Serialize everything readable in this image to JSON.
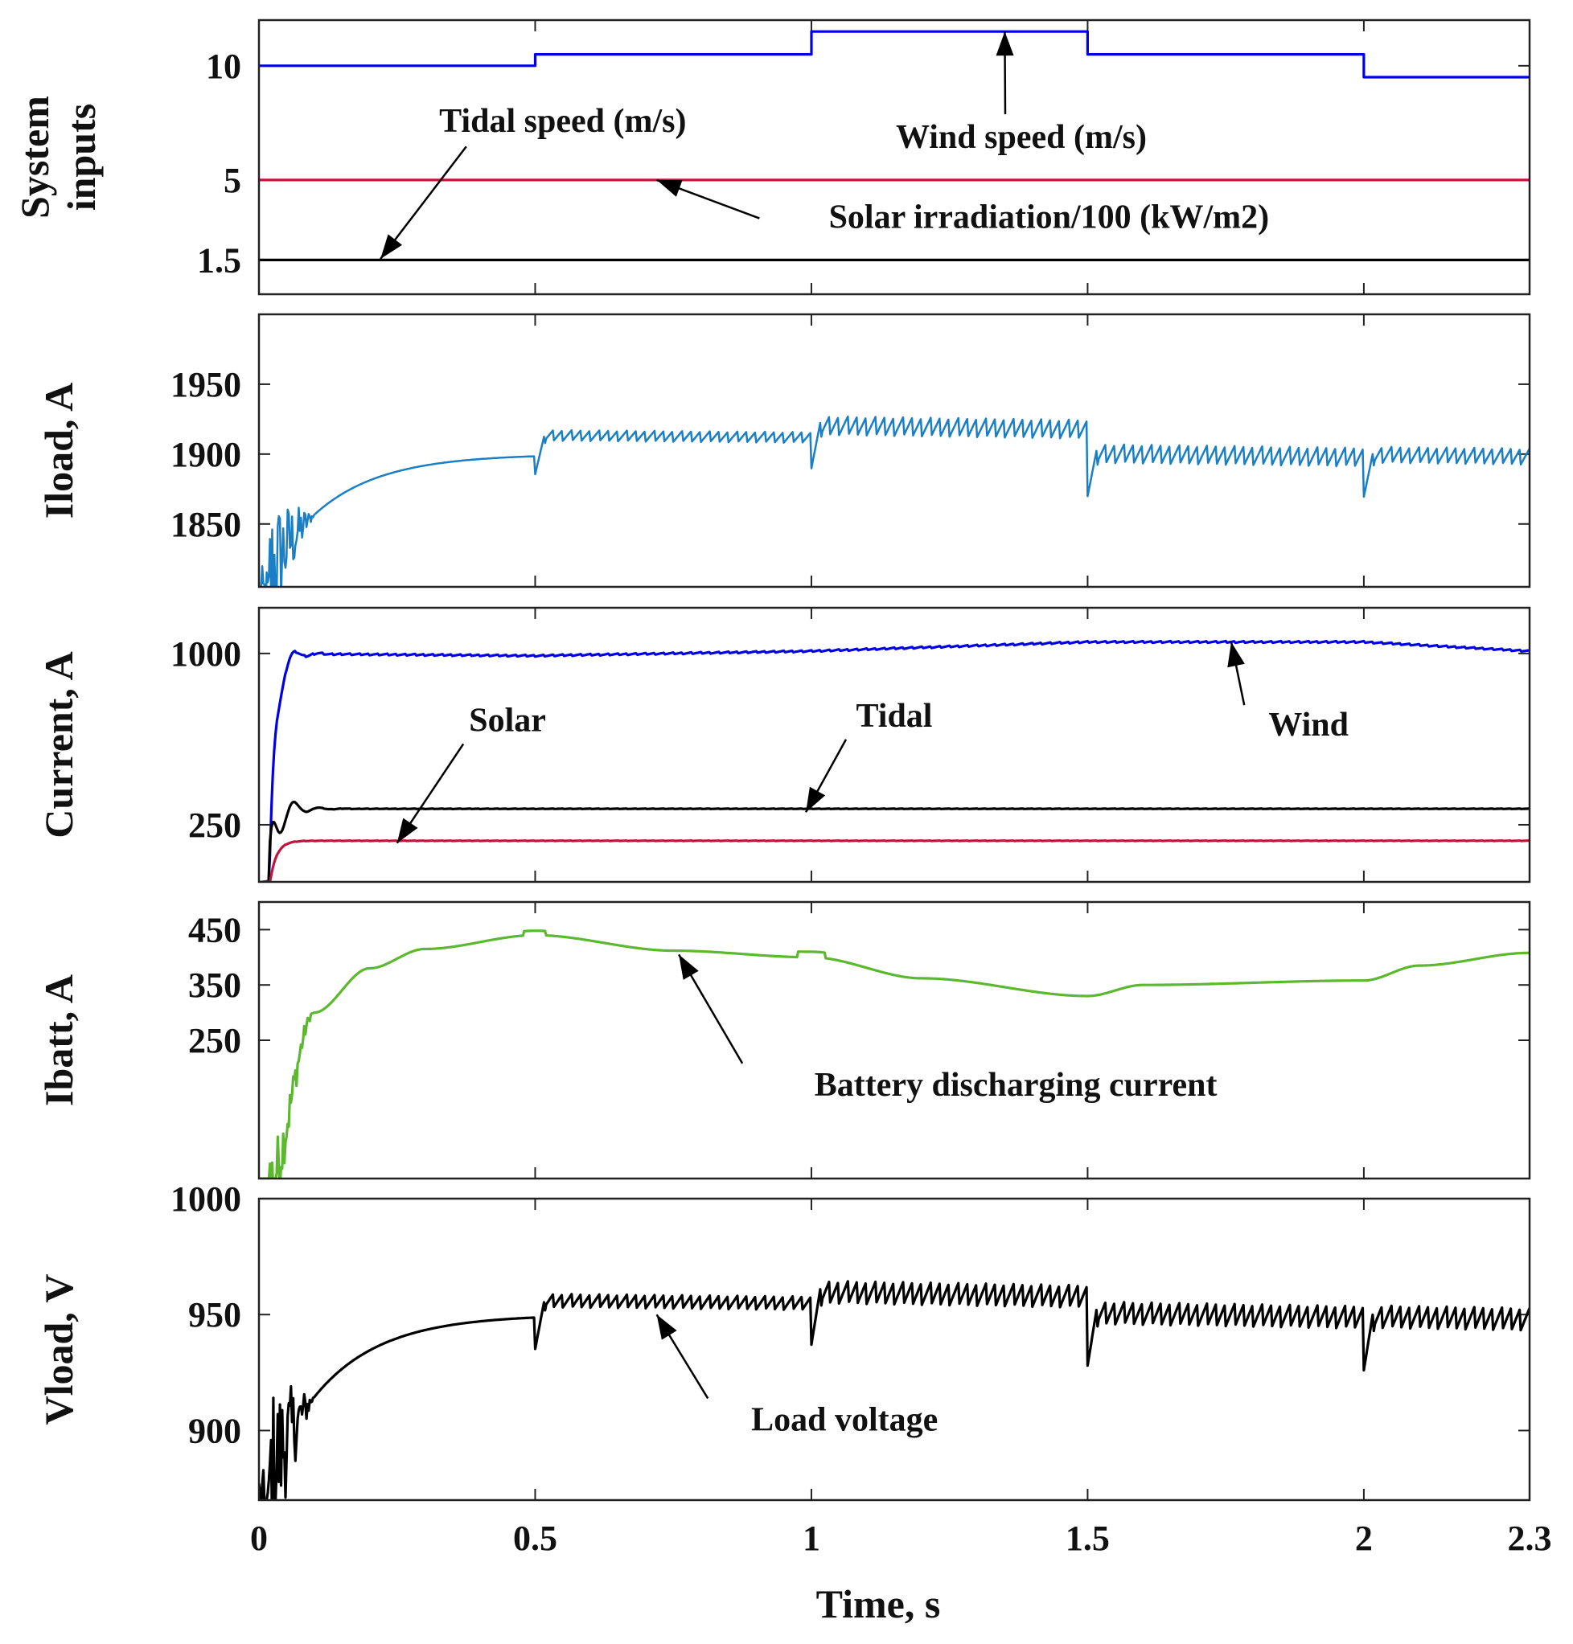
{
  "chart_data": {
    "type": "line",
    "xlabel": "Time, s",
    "xlim": [
      0,
      2.3
    ],
    "xticks": [
      0,
      0.5,
      1,
      1.5,
      2,
      2.3
    ],
    "xtick_labels": [
      "0",
      "0.5",
      "1",
      "1.5",
      "2",
      "2.3"
    ],
    "panels": [
      {
        "id": "inputs",
        "ylabel": [
          "System",
          "inputs"
        ],
        "ylim": [
          0,
          12
        ],
        "yticks": [
          1.5,
          5,
          10
        ],
        "ytick_labels": [
          "1.5",
          "5",
          "10"
        ],
        "series": [
          {
            "name": "Wind speed (m/s)",
            "color": "#0000e6",
            "steps": [
              [
                0,
                10
              ],
              [
                0.5,
                10.5
              ],
              [
                1,
                11.5
              ],
              [
                1.5,
                10.5
              ],
              [
                2,
                9.5
              ],
              [
                2.3,
                9.5
              ]
            ]
          },
          {
            "name": "Solar irradiation/100 (kW/m2)",
            "color": "#c0143c",
            "steps": [
              [
                0,
                5
              ],
              [
                2.3,
                5
              ]
            ]
          },
          {
            "name": "Tidal speed (m/s)",
            "color": "#000000",
            "steps": [
              [
                0,
                1.5
              ],
              [
                2.3,
                1.5
              ]
            ]
          }
        ],
        "annotations": [
          {
            "text": "Tidal speed (m/s)",
            "x": 0.55,
            "y": 7.1,
            "arrow_to": [
              0.22,
              1.55
            ]
          },
          {
            "text": "Wind speed (m/s)",
            "x": 1.38,
            "y": 6.4,
            "arrow_to": [
              1.35,
              11.5
            ]
          },
          {
            "text": "Solar irradiation/100 (kW/m2)",
            "x": 1.43,
            "y": 2.9,
            "arrow_to": [
              0.72,
              5.0
            ]
          }
        ]
      },
      {
        "id": "iload",
        "ylabel": [
          "Iload, A"
        ],
        "ylim": [
          1805,
          2000
        ],
        "yticks": [
          1850,
          1900,
          1950
        ],
        "ytick_labels": [
          "1850",
          "1900",
          "1950"
        ],
        "series": [
          {
            "name": "Iload",
            "color": "#1a7fc4",
            "segments": [
              [
                0.5,
                1900
              ],
              [
                1.0,
                1912
              ],
              [
                1.5,
                1918
              ],
              [
                2.0,
                1898
              ],
              [
                2.3,
                1897
              ]
            ],
            "ripple_amp": [
              0,
              4,
              7,
              7,
              6
            ]
          }
        ],
        "annotations": []
      },
      {
        "id": "current",
        "ylabel": [
          "Current, A"
        ],
        "ylim": [
          0,
          1200
        ],
        "yticks": [
          250,
          1000
        ],
        "ytick_labels": [
          "250",
          "1000"
        ],
        "series": [
          {
            "name": "Wind",
            "color": "#0000e6",
            "levels": [
              [
                0,
                1000
              ],
              [
                0.5,
                990
              ],
              [
                1,
                1010
              ],
              [
                1.5,
                1050
              ],
              [
                2,
                1050
              ],
              [
                2.3,
                1010
              ]
            ]
          },
          {
            "name": "Tidal",
            "color": "#000000",
            "levels": [
              [
                0,
                320
              ],
              [
                2.3,
                320
              ]
            ]
          },
          {
            "name": "Solar",
            "color": "#c0143c",
            "levels": [
              [
                0,
                180
              ],
              [
                2.3,
                180
              ]
            ]
          }
        ],
        "annotations": [
          {
            "text": "Solar",
            "x": 0.45,
            "y": 660,
            "arrow_to": [
              0.25,
              170
            ]
          },
          {
            "text": "Tidal",
            "x": 1.15,
            "y": 680,
            "arrow_to": [
              0.99,
              305
            ]
          },
          {
            "text": "Wind",
            "x": 1.9,
            "y": 640,
            "arrow_to": [
              1.76,
              1050
            ]
          }
        ]
      },
      {
        "id": "ibatt",
        "ylabel": [
          "Ibatt, A"
        ],
        "ylim": [
          0,
          500
        ],
        "yticks": [
          250,
          350,
          450
        ],
        "ytick_labels": [
          "250",
          "350",
          "450"
        ],
        "series": [
          {
            "name": "Battery discharging current",
            "color": "#5cb82e",
            "levels": [
              [
                0.5,
                440
              ],
              [
                1.0,
                400
              ],
              [
                1.5,
                340
              ],
              [
                2.0,
                360
              ],
              [
                2.3,
                408
              ]
            ]
          }
        ],
        "annotations": [
          {
            "text": "Battery discharging current",
            "x": 1.37,
            "y": 150,
            "arrow_to": [
              0.76,
              405
            ]
          }
        ]
      },
      {
        "id": "vload",
        "ylabel": [
          "Vload, V"
        ],
        "ylim": [
          870,
          1000
        ],
        "yticks": [
          900,
          950,
          1000
        ],
        "ytick_labels": [
          "900",
          "950",
          "1000"
        ],
        "series": [
          {
            "name": "Load voltage",
            "color": "#000000",
            "segments": [
              [
                0.5,
                950
              ],
              [
                1.0,
                955
              ],
              [
                1.5,
                958
              ],
              [
                2.0,
                949
              ],
              [
                2.3,
                947
              ]
            ],
            "ripple_amp": [
              0,
              3,
              5,
              5,
              5
            ]
          }
        ],
        "annotations": [
          {
            "text": "Load voltage",
            "x": 1.06,
            "y": 900,
            "arrow_to": [
              0.72,
              950
            ]
          }
        ]
      }
    ]
  }
}
